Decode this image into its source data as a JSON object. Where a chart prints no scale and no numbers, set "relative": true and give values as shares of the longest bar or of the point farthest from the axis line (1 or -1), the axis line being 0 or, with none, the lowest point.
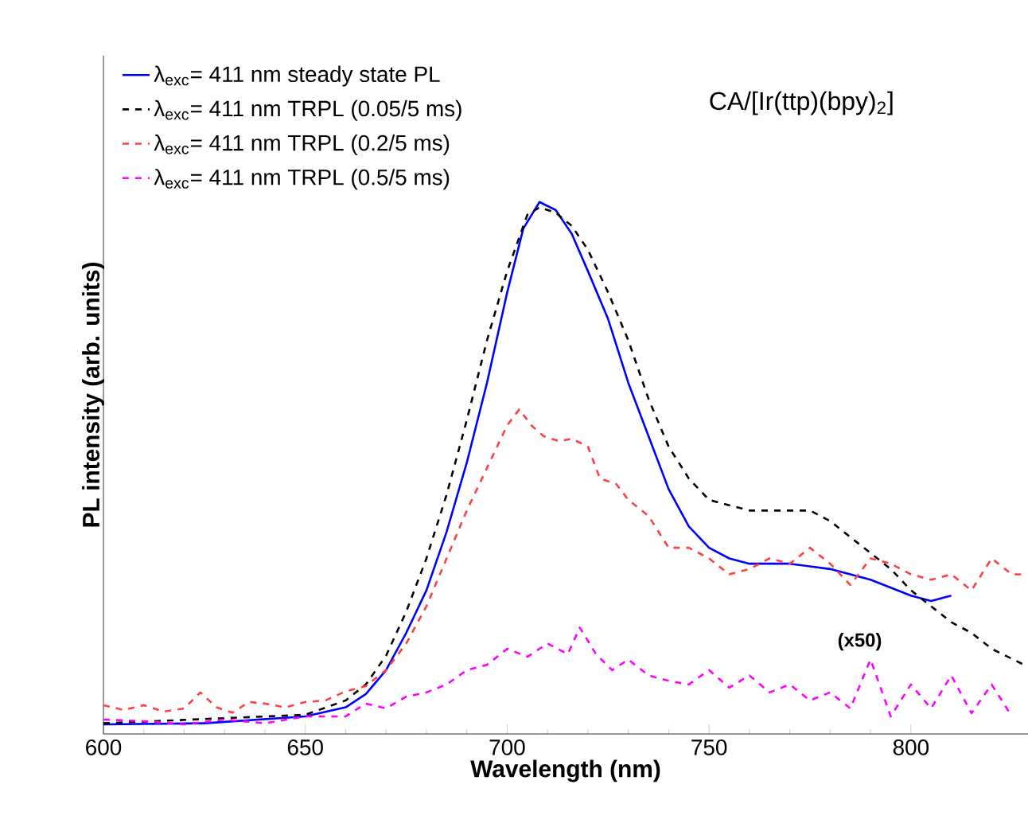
{
  "chart_data": {
    "type": "line",
    "title": "CA/[Ir(ttp)(bpy)$_{2}$]",
    "xlabel": "Wavelength (nm)",
    "ylabel": "PL intensity (arb. units)",
    "relative": true,
    "xlim": [
      600,
      829
    ],
    "xticks": [
      600,
      650,
      700,
      750,
      800
    ],
    "tick_labels": "x",
    "legend": "top left",
    "grid": false,
    "marker": "none",
    "annotations": [
      "(x50)"
    ],
    "series": [
      {
        "name": "λ$_{exc}$= 411 nm steady state PL",
        "color": "#0000ff",
        "line_style": "solid",
        "x": [
          600,
          625,
          650,
          660,
          665,
          670,
          675,
          680,
          685,
          690,
          695,
          700,
          704,
          708,
          712,
          716,
          720,
          725,
          730,
          735,
          740,
          745,
          750,
          755,
          760,
          770,
          780,
          790,
          800,
          805,
          810
        ],
        "values": [
          0.018,
          0.02,
          0.033,
          0.05,
          0.075,
          0.12,
          0.19,
          0.27,
          0.38,
          0.51,
          0.66,
          0.83,
          0.95,
          1.0,
          0.985,
          0.94,
          0.87,
          0.78,
          0.66,
          0.56,
          0.46,
          0.39,
          0.35,
          0.33,
          0.32,
          0.32,
          0.31,
          0.29,
          0.26,
          0.25,
          0.26
        ]
      },
      {
        "name": "λ$_{exc}$= 411 nm TRPL (0.05/5 ms)",
        "color": "#000000",
        "line_style": "dashed",
        "x": [
          600,
          650,
          660,
          665,
          670,
          675,
          680,
          685,
          690,
          695,
          700,
          705,
          708,
          712,
          716,
          720,
          725,
          730,
          735,
          740,
          745,
          750,
          755,
          760,
          770,
          775,
          780,
          785,
          790,
          795,
          800,
          805,
          810,
          815,
          820,
          828
        ],
        "values": [
          0.02,
          0.036,
          0.063,
          0.093,
          0.147,
          0.23,
          0.33,
          0.45,
          0.59,
          0.74,
          0.87,
          0.976,
          0.99,
          0.98,
          0.955,
          0.91,
          0.83,
          0.74,
          0.63,
          0.54,
          0.48,
          0.44,
          0.43,
          0.42,
          0.42,
          0.42,
          0.4,
          0.37,
          0.34,
          0.31,
          0.27,
          0.24,
          0.21,
          0.19,
          0.16,
          0.13
        ]
      },
      {
        "name": "λ$_{exc}$= 411 nm TRPL (0.2/5 ms)",
        "color": "#ff4040",
        "line_style": "dashed",
        "x": [
          600,
          605,
          610,
          615,
          620,
          624,
          628,
          632,
          636,
          640,
          645,
          650,
          655,
          660,
          665,
          670,
          675,
          680,
          685,
          690,
          695,
          700,
          703,
          706,
          709,
          713,
          716,
          720,
          723,
          727,
          730,
          735,
          740,
          745,
          750,
          755,
          760,
          765,
          770,
          775,
          780,
          785,
          790,
          795,
          800,
          805,
          810,
          815,
          820,
          825,
          828
        ],
        "values": [
          0.054,
          0.045,
          0.054,
          0.042,
          0.048,
          0.078,
          0.05,
          0.04,
          0.06,
          0.057,
          0.05,
          0.06,
          0.063,
          0.08,
          0.09,
          0.12,
          0.17,
          0.24,
          0.33,
          0.42,
          0.5,
          0.58,
          0.61,
          0.58,
          0.56,
          0.55,
          0.555,
          0.54,
          0.48,
          0.47,
          0.44,
          0.41,
          0.35,
          0.35,
          0.33,
          0.3,
          0.31,
          0.33,
          0.32,
          0.35,
          0.32,
          0.28,
          0.33,
          0.32,
          0.3,
          0.29,
          0.3,
          0.27,
          0.33,
          0.3,
          0.3
        ]
      },
      {
        "name": "λ$_{exc}$= 411 nm TRPL (0.5/5 ms)",
        "color": "#ff00ff",
        "line_style": "dashed",
        "x": [
          600,
          610,
          620,
          630,
          640,
          650,
          660,
          665,
          670,
          675,
          680,
          685,
          690,
          695,
          700,
          705,
          710,
          715,
          718,
          722,
          726,
          730,
          735,
          740,
          745,
          750,
          755,
          760,
          765,
          770,
          775,
          780,
          785,
          790,
          795,
          800,
          805,
          810,
          815,
          820,
          825
        ],
        "values": [
          0.027,
          0.024,
          0.018,
          0.027,
          0.02,
          0.033,
          0.033,
          0.057,
          0.048,
          0.07,
          0.078,
          0.093,
          0.12,
          0.13,
          0.16,
          0.145,
          0.17,
          0.15,
          0.2,
          0.15,
          0.12,
          0.14,
          0.11,
          0.1,
          0.093,
          0.12,
          0.087,
          0.11,
          0.078,
          0.093,
          0.063,
          0.078,
          0.048,
          0.14,
          0.033,
          0.093,
          0.048,
          0.11,
          0.039,
          0.093,
          0.033
        ]
      }
    ]
  }
}
